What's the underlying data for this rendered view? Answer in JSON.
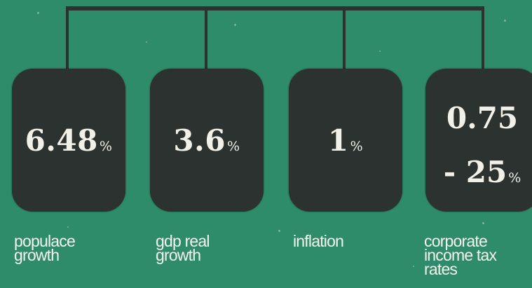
{
  "heading": "",
  "cards": [
    {
      "value": "6.48",
      "unit": "%",
      "label_lines": [
        "populace",
        "growth"
      ]
    },
    {
      "value": "3.6",
      "unit": "%",
      "label_lines": [
        "gdp real",
        "growth"
      ]
    },
    {
      "value": "1",
      "unit": "%",
      "label_lines": [
        "inflation"
      ]
    },
    {
      "value_line1": "0.75",
      "value_line2": "- 25",
      "unit": "%",
      "label_lines": [
        "corporate",
        "income tax",
        "rates"
      ]
    }
  ],
  "colors": {
    "background": "#2f8c6a",
    "card": "#2c322f",
    "text": "#f1f1ea"
  }
}
